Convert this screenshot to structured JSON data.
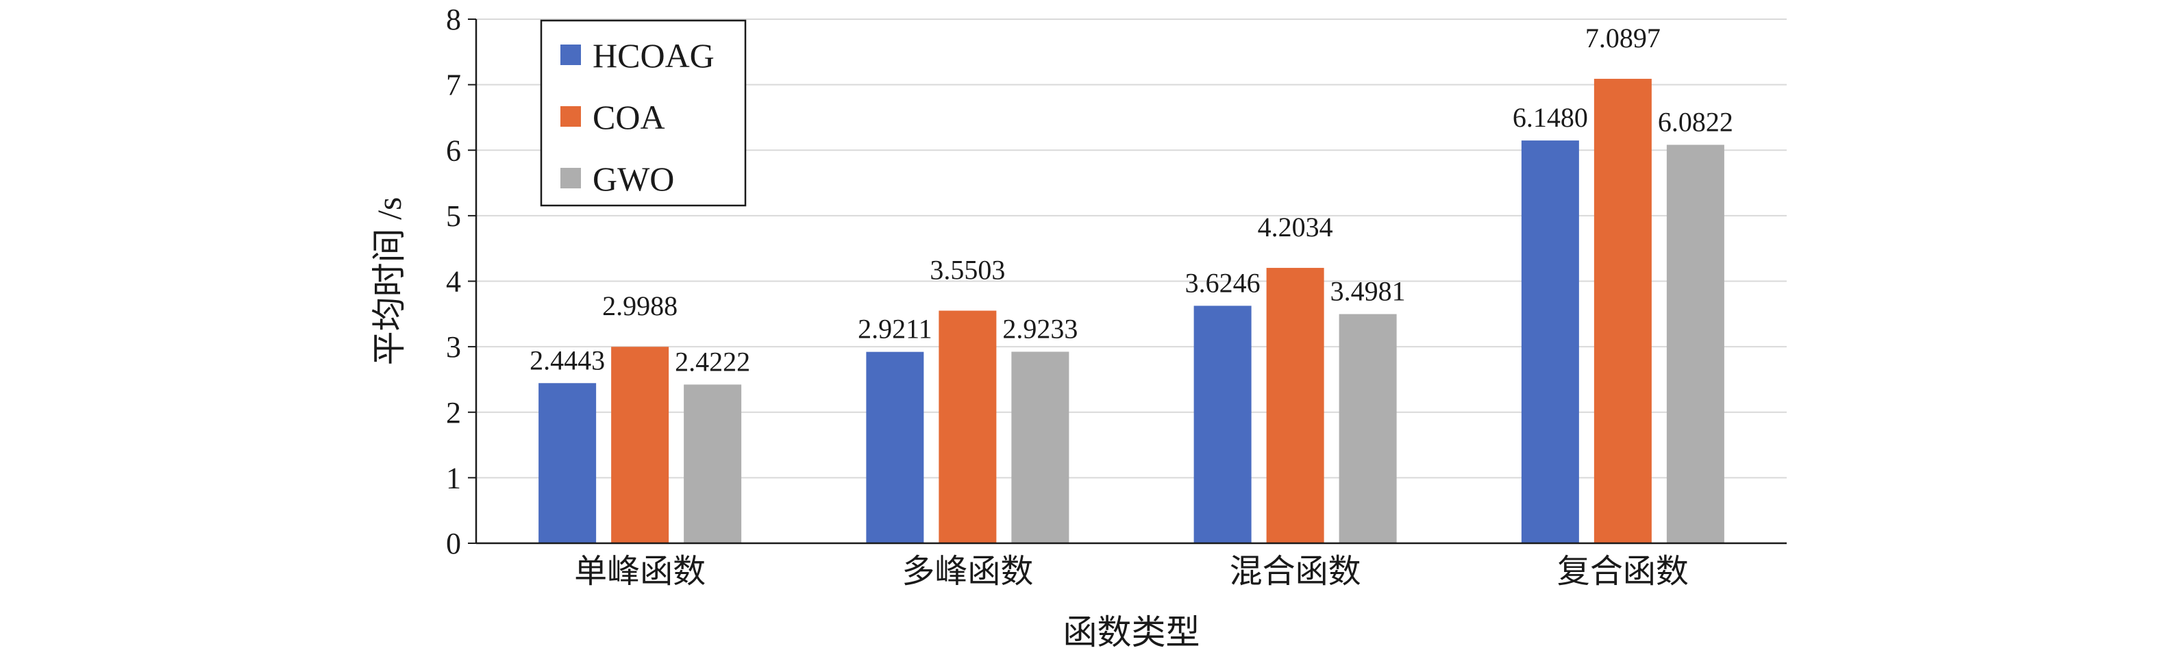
{
  "chart_data": {
    "type": "bar",
    "title": "",
    "xlabel": "函数类型",
    "ylabel": "平均时间 /s",
    "categories": [
      "单峰函数",
      "多峰函数",
      "混合函数",
      "复合函数"
    ],
    "ylim": [
      0,
      8
    ],
    "yticks": [
      0,
      1,
      2,
      3,
      4,
      5,
      6,
      7,
      8
    ],
    "grid": true,
    "legend_position": "top-left",
    "series": [
      {
        "name": "HCOAG",
        "color": "#4a6cc0",
        "values": [
          2.4443,
          2.9211,
          3.6246,
          6.148
        ],
        "labels": [
          "2.4443",
          "2.9211",
          "3.6246",
          "6.1480"
        ]
      },
      {
        "name": "COA",
        "color": "#e46a36",
        "values": [
          2.9988,
          3.5503,
          4.2034,
          7.0897
        ],
        "labels": [
          "2.9988",
          "3.5503",
          "4.2034",
          "7.0897"
        ]
      },
      {
        "name": "GWO",
        "color": "#aeaeae",
        "values": [
          2.4222,
          2.9233,
          3.4981,
          6.0822
        ],
        "labels": [
          "2.4222",
          "2.9233",
          "3.4981",
          "6.0822"
        ]
      }
    ]
  }
}
